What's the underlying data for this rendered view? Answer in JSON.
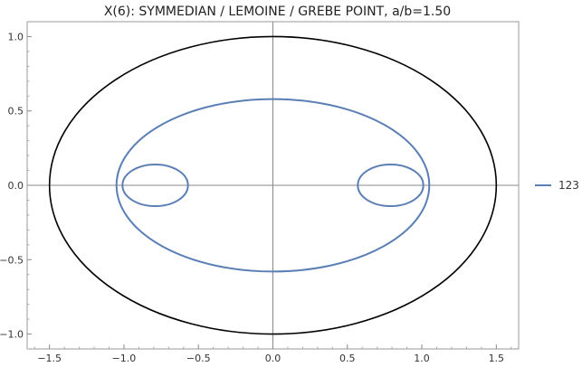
{
  "chart_data": {
    "type": "line",
    "title": "X(6): SYMMEDIAN / LEMOINE / GREBE POINT, a/b=1.50",
    "xlabel": "",
    "ylabel": "",
    "xlim": [
      -1.65,
      1.65
    ],
    "ylim": [
      -1.1,
      1.1
    ],
    "x_ticks": [
      -1.5,
      -1.0,
      -0.5,
      0.0,
      0.5,
      1.0,
      1.5
    ],
    "x_tick_labels": [
      "−1.5",
      "−1.0",
      "−0.5",
      "0.0",
      "0.5",
      "1.0",
      "1.5"
    ],
    "y_ticks": [
      -1.0,
      -0.5,
      0.0,
      0.5,
      1.0
    ],
    "y_tick_labels": [
      "−1.0",
      "−0.5",
      "0.0",
      "0.5",
      "1.0"
    ],
    "grid": false,
    "legend_position": "right",
    "series": [
      {
        "color": "#000000",
        "shape": "ellipse",
        "center": [
          0,
          0
        ],
        "semi_axes": [
          1.5,
          1.0
        ]
      },
      {
        "name": "123",
        "color": "#5b7fb5",
        "shape": "curve",
        "parts": [
          {
            "kind": "ellipse",
            "center": [
              0,
              0
            ],
            "semi_axes": [
              1.05,
              0.58
            ]
          },
          {
            "kind": "ellipse",
            "center": [
              -0.79,
              0
            ],
            "semi_axes": [
              0.22,
              0.14
            ]
          },
          {
            "kind": "ellipse",
            "center": [
              0.79,
              0
            ],
            "semi_axes": [
              0.22,
              0.14
            ]
          }
        ]
      }
    ]
  }
}
